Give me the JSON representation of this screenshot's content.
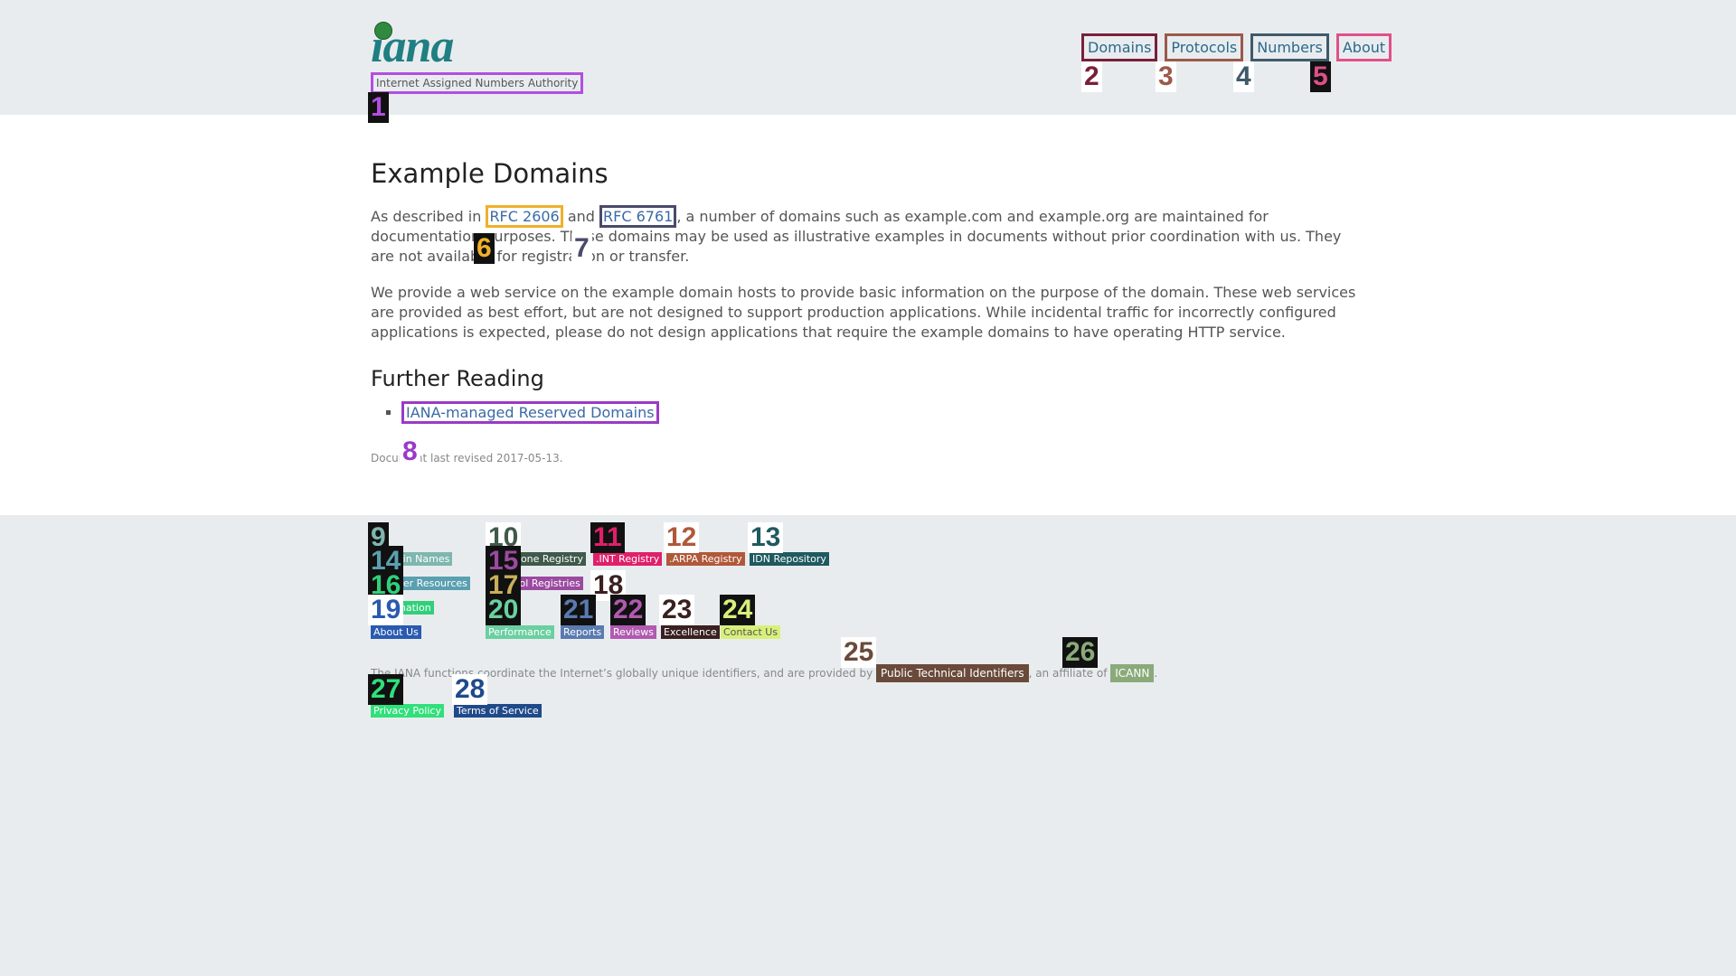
{
  "header": {
    "logo_text": "iana",
    "subtitle": "Internet Assigned Numbers Authority",
    "nav": {
      "domains": "Domains",
      "protocols": "Protocols",
      "numbers": "Numbers",
      "about": "About"
    }
  },
  "main": {
    "title": "Example Domains",
    "p1_before": "As described in ",
    "rfc1": "RFC 2606",
    "p1_mid": " and ",
    "rfc2": "RFC 6761",
    "p1_after": ", a number of domains such as example.com and example.org are maintained for documentation purposes. These domains may be used as illustrative examples in documents without prior coordination with us. They are not available for registration or transfer.",
    "p2": "We provide a web service on the example domain hosts to provide basic information on the purpose of the domain. These web services are provided as best effort, but are not designed to support production applications. While incidental traffic for incorrectly configured applications is expected, please do not design applications that require the example domains to have operating HTTP service.",
    "further_title": "Further Reading",
    "further_link": "IANA-managed Reserved Domains",
    "revised": "Document last revised 2017-05-13."
  },
  "footer": {
    "links": [
      "Domain Names",
      "Root Zone Registry",
      ".INT Registry",
      ".ARPA Registry",
      "IDN Repository",
      "Number Resources",
      "Protocol Registries",
      "Information",
      "About Us",
      "Performance",
      "Reports",
      "Reviews",
      "Excellence",
      "Contact Us"
    ],
    "copy_before": "The IANA functions coordinate the Internet’s globally unique identifiers, and are provided by ",
    "pti": "Public Technical Identifiers",
    "copy_mid": ", an affiliate of ",
    "icann": "ICANN",
    "copy_end": ".",
    "privacy": "Privacy Policy",
    "terms": "Terms of Service"
  },
  "badges": [
    "1",
    "2",
    "3",
    "4",
    "5",
    "6",
    "7",
    "8",
    "9",
    "10",
    "11",
    "12",
    "13",
    "14",
    "15",
    "16",
    "17",
    "18",
    "19",
    "20",
    "21",
    "22",
    "23",
    "24",
    "25",
    "26",
    "27",
    "28"
  ]
}
